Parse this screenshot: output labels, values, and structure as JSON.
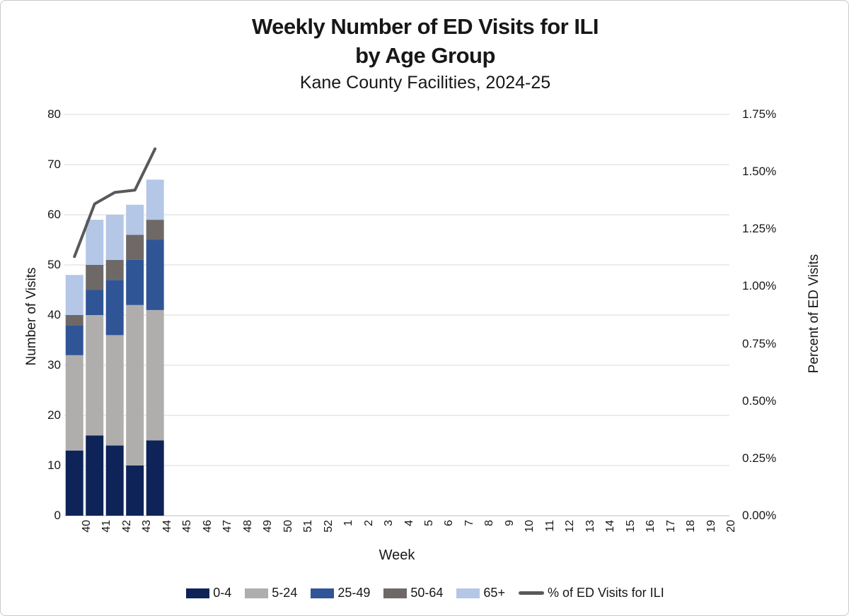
{
  "title": {
    "line1": "Weekly Number of ED Visits for ILI",
    "line2": "by Age Group",
    "subtitle": "Kane County Facilities, 2024-25"
  },
  "chart_data": {
    "type": "bar",
    "stacked": true,
    "title": "Weekly Number of ED Visits for ILI by Age Group",
    "subtitle": "Kane County Facilities, 2024-25",
    "xlabel": "Week",
    "categories": [
      "40",
      "41",
      "42",
      "43",
      "44",
      "45",
      "46",
      "47",
      "48",
      "49",
      "50",
      "51",
      "52",
      "1",
      "2",
      "3",
      "4",
      "5",
      "6",
      "7",
      "8",
      "9",
      "10",
      "11",
      "12",
      "13",
      "14",
      "15",
      "16",
      "17",
      "18",
      "19",
      "20"
    ],
    "series": [
      {
        "name": "0-4",
        "color": "#0e2458",
        "values": [
          13,
          16,
          14,
          10,
          15
        ]
      },
      {
        "name": "5-24",
        "color": "#b0aead",
        "values": [
          19,
          24,
          22,
          32,
          26
        ]
      },
      {
        "name": "25-49",
        "color": "#2f5597",
        "values": [
          6,
          5,
          11,
          9,
          14
        ]
      },
      {
        "name": "50-64",
        "color": "#6e6866",
        "values": [
          2,
          5,
          4,
          5,
          4
        ]
      },
      {
        "name": "65+",
        "color": "#b4c7e7",
        "values": [
          8,
          9,
          9,
          6,
          8
        ]
      }
    ],
    "bar_totals": [
      48,
      59,
      60,
      62,
      67
    ],
    "line_series": {
      "name": "% of ED Visits for ILI",
      "color": "#595959",
      "values_percent": [
        1.13,
        1.36,
        1.41,
        1.42,
        1.6
      ]
    },
    "y_left": {
      "title": "Number of Visits",
      "min": 0,
      "max": 80,
      "ticks": [
        "0",
        "10",
        "20",
        "30",
        "40",
        "50",
        "60",
        "70",
        "80"
      ]
    },
    "y_right": {
      "title": "Percent of ED Visits",
      "min": 0,
      "max": 1.75,
      "ticks": [
        "0.00%",
        "0.25%",
        "0.50%",
        "0.75%",
        "1.00%",
        "1.25%",
        "1.50%",
        "1.75%"
      ]
    },
    "grid": true,
    "gridline_color": "#d9d9d9",
    "axis_line_color": "#bfbfbf",
    "legend_position": "bottom"
  }
}
